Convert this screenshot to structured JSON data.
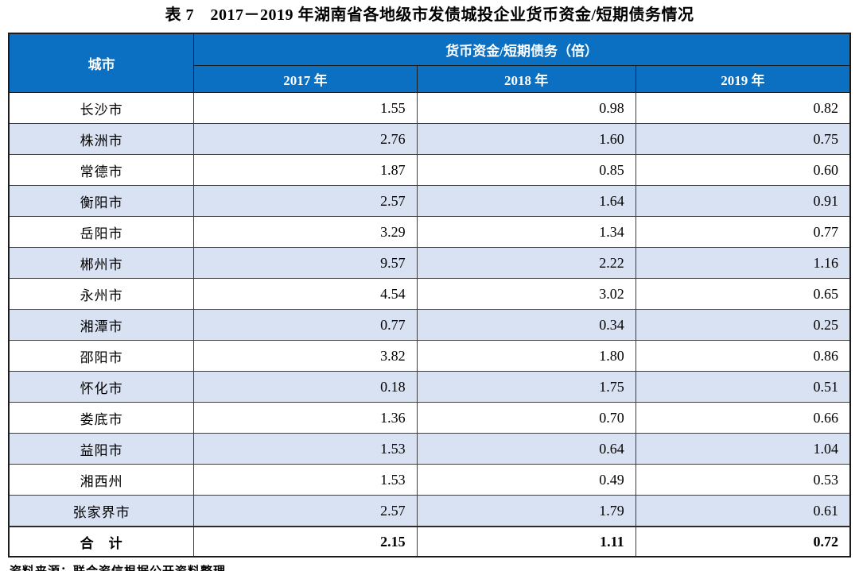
{
  "title": "表 7　2017－2019 年湖南省各地级市发债城投企业货币资金/短期债务情况",
  "table": {
    "corner_header": "城市",
    "group_header": "货币资金/短期债务（倍）",
    "year_headers": [
      "2017 年",
      "2018 年",
      "2019 年"
    ],
    "rows": [
      {
        "city": "长沙市",
        "values": [
          "1.55",
          "0.98",
          "0.82"
        ]
      },
      {
        "city": "株洲市",
        "values": [
          "2.76",
          "1.60",
          "0.75"
        ]
      },
      {
        "city": "常德市",
        "values": [
          "1.87",
          "0.85",
          "0.60"
        ]
      },
      {
        "city": "衡阳市",
        "values": [
          "2.57",
          "1.64",
          "0.91"
        ]
      },
      {
        "city": "岳阳市",
        "values": [
          "3.29",
          "1.34",
          "0.77"
        ]
      },
      {
        "city": "郴州市",
        "values": [
          "9.57",
          "2.22",
          "1.16"
        ]
      },
      {
        "city": "永州市",
        "values": [
          "4.54",
          "3.02",
          "0.65"
        ]
      },
      {
        "city": "湘潭市",
        "values": [
          "0.77",
          "0.34",
          "0.25"
        ]
      },
      {
        "city": "邵阳市",
        "values": [
          "3.82",
          "1.80",
          "0.86"
        ]
      },
      {
        "city": "怀化市",
        "values": [
          "0.18",
          "1.75",
          "0.51"
        ]
      },
      {
        "city": "娄底市",
        "values": [
          "1.36",
          "0.70",
          "0.66"
        ]
      },
      {
        "city": "益阳市",
        "values": [
          "1.53",
          "0.64",
          "1.04"
        ]
      },
      {
        "city": "湘西州",
        "values": [
          "1.53",
          "0.49",
          "0.53"
        ]
      },
      {
        "city": "张家界市",
        "values": [
          "2.57",
          "1.79",
          "0.61"
        ]
      }
    ],
    "total": {
      "label": "合　计",
      "values": [
        "2.15",
        "1.11",
        "0.72"
      ]
    }
  },
  "source_note": "资料来源：联合资信根据公开资料整理",
  "colors": {
    "header_bg": "#0B70C2",
    "header_text": "#FFFFFF",
    "alt_row_bg": "#D9E2F3",
    "border": "#3D3D3D",
    "outer_border": "#1C1C1C",
    "text": "#000000"
  },
  "chart_data": {
    "type": "table",
    "title": "表 7　2017－2019 年湖南省各地级市发债城投企业货币资金/短期债务情况",
    "columns": [
      "城市",
      "2017 年",
      "2018 年",
      "2019 年"
    ],
    "rows": [
      [
        "长沙市",
        1.55,
        0.98,
        0.82
      ],
      [
        "株洲市",
        2.76,
        1.6,
        0.75
      ],
      [
        "常德市",
        1.87,
        0.85,
        0.6
      ],
      [
        "衡阳市",
        2.57,
        1.64,
        0.91
      ],
      [
        "岳阳市",
        3.29,
        1.34,
        0.77
      ],
      [
        "郴州市",
        9.57,
        2.22,
        1.16
      ],
      [
        "永州市",
        4.54,
        3.02,
        0.65
      ],
      [
        "湘潭市",
        0.77,
        0.34,
        0.25
      ],
      [
        "邵阳市",
        3.82,
        1.8,
        0.86
      ],
      [
        "怀化市",
        0.18,
        1.75,
        0.51
      ],
      [
        "娄底市",
        1.36,
        0.7,
        0.66
      ],
      [
        "益阳市",
        1.53,
        0.64,
        1.04
      ],
      [
        "湘西州",
        1.53,
        0.49,
        0.53
      ],
      [
        "张家界市",
        2.57,
        1.79,
        0.61
      ],
      [
        "合计",
        2.15,
        1.11,
        0.72
      ]
    ]
  }
}
